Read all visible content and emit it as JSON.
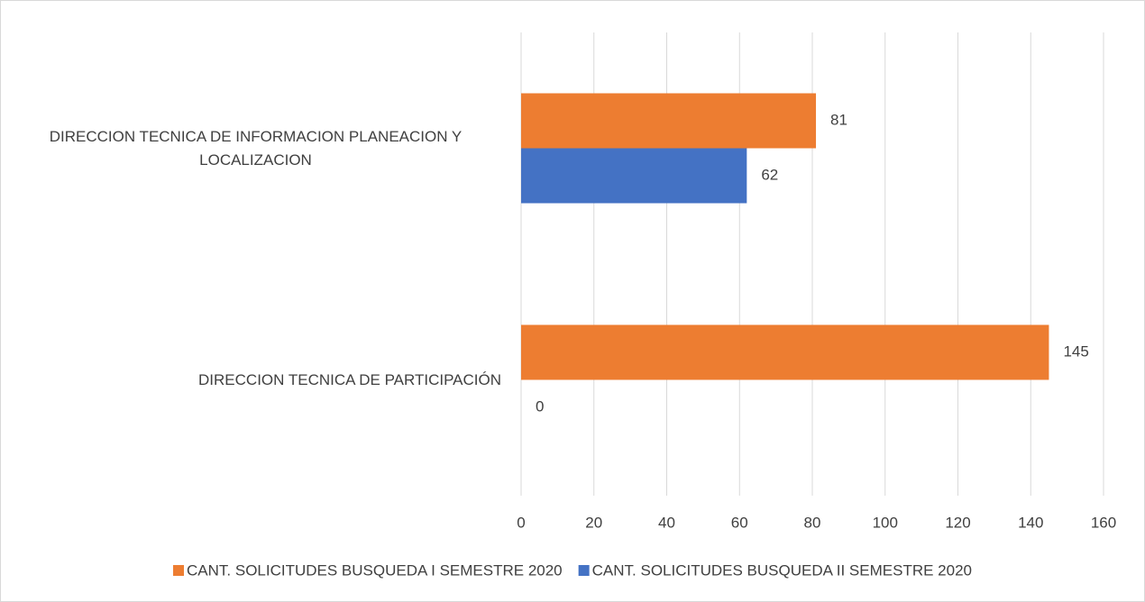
{
  "chart_data": {
    "type": "bar",
    "orientation": "horizontal",
    "categories": [
      "DIRECCION TECNICA DE INFORMACION PLANEACION Y LOCALIZACION",
      "DIRECCION TECNICA DE PARTICIPACIÓN"
    ],
    "series": [
      {
        "name": "CANT. SOLICITUDES BUSQUEDA I SEMESTRE 2020",
        "color": "#ed7d31",
        "values": [
          81,
          145
        ]
      },
      {
        "name": "CANT. SOLICITUDES BUSQUEDA II SEMESTRE 2020",
        "color": "#4472c4",
        "values": [
          62,
          0
        ]
      }
    ],
    "xlim": [
      0,
      160
    ],
    "xticks": [
      0,
      20,
      40,
      60,
      80,
      100,
      120,
      140,
      160
    ],
    "grid": true,
    "legend": "bottom"
  }
}
